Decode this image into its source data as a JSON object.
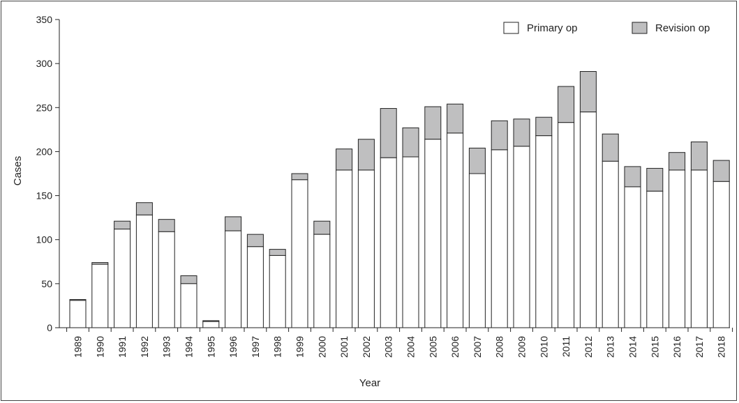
{
  "chart_data": {
    "type": "bar",
    "stacked": true,
    "title": "",
    "xlabel": "Year",
    "ylabel": "Cases",
    "ylim": [
      0,
      350
    ],
    "yticks": [
      0,
      50,
      100,
      150,
      200,
      250,
      300,
      350
    ],
    "grid": false,
    "legend_position": "top-right",
    "categories": [
      "1989",
      "1990",
      "1991",
      "1992",
      "1993",
      "1994",
      "1995",
      "1996",
      "1997",
      "1998",
      "1999",
      "2000",
      "2001",
      "2002",
      "2003",
      "2004",
      "2005",
      "2006",
      "2007",
      "2008",
      "2009",
      "2010",
      "2011",
      "2012",
      "2013",
      "2014",
      "2015",
      "2016",
      "2017",
      "2018"
    ],
    "series": [
      {
        "name": "Primary op",
        "color": "#ffffff",
        "values": [
          31,
          72,
          112,
          128,
          109,
          50,
          7,
          110,
          92,
          82,
          168,
          106,
          179,
          179,
          193,
          194,
          214,
          221,
          175,
          202,
          206,
          218,
          233,
          245,
          189,
          160,
          155,
          179,
          179,
          166
        ]
      },
      {
        "name": "Revision op",
        "color": "#bfbfc0",
        "values": [
          1,
          2,
          9,
          14,
          14,
          9,
          1,
          16,
          14,
          7,
          7,
          15,
          24,
          35,
          56,
          33,
          37,
          33,
          29,
          33,
          31,
          21,
          41,
          46,
          31,
          23,
          26,
          20,
          32,
          24
        ]
      }
    ]
  }
}
